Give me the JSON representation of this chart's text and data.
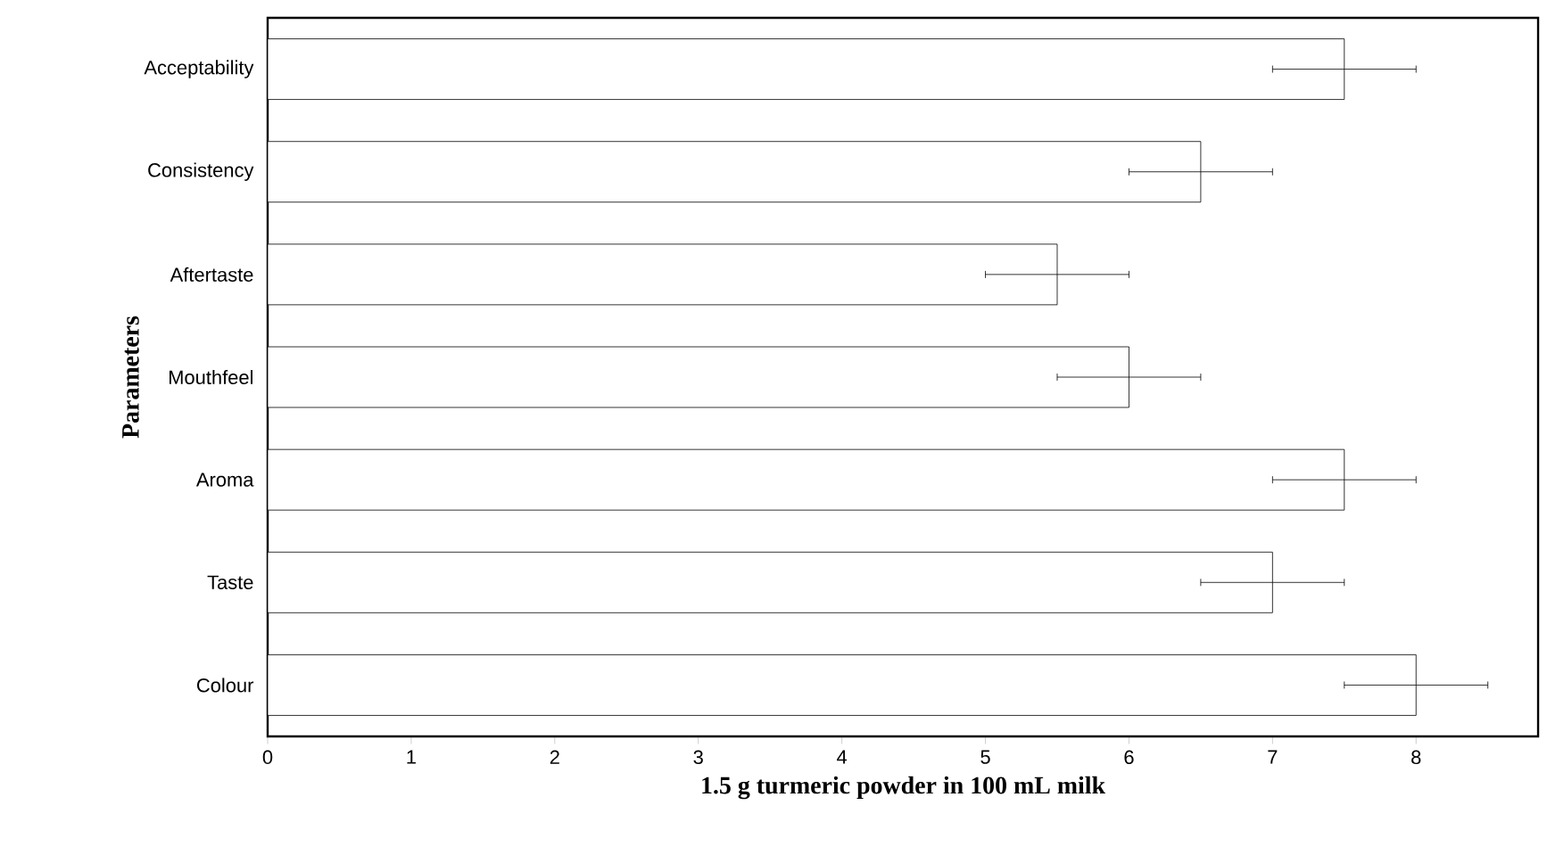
{
  "chart_data": {
    "type": "bar",
    "orientation": "horizontal",
    "xlabel": "1.5 g turmeric powder in 100 mL milk",
    "ylabel": "Parameters",
    "categories": [
      "Acceptability",
      "Consistency",
      "Aftertaste",
      "Mouthfeel",
      "Aroma",
      "Taste",
      "Colour"
    ],
    "values": [
      7.5,
      6.5,
      5.5,
      6,
      7.5,
      7,
      8
    ],
    "errors": [
      0.5,
      0.5,
      0.5,
      0.5,
      0.5,
      0.5,
      0.5
    ],
    "color": "#ffffff",
    "xlim": [
      0,
      8.85
    ],
    "xticks": [
      0,
      1,
      2,
      3,
      4,
      5,
      6,
      7,
      8
    ]
  }
}
